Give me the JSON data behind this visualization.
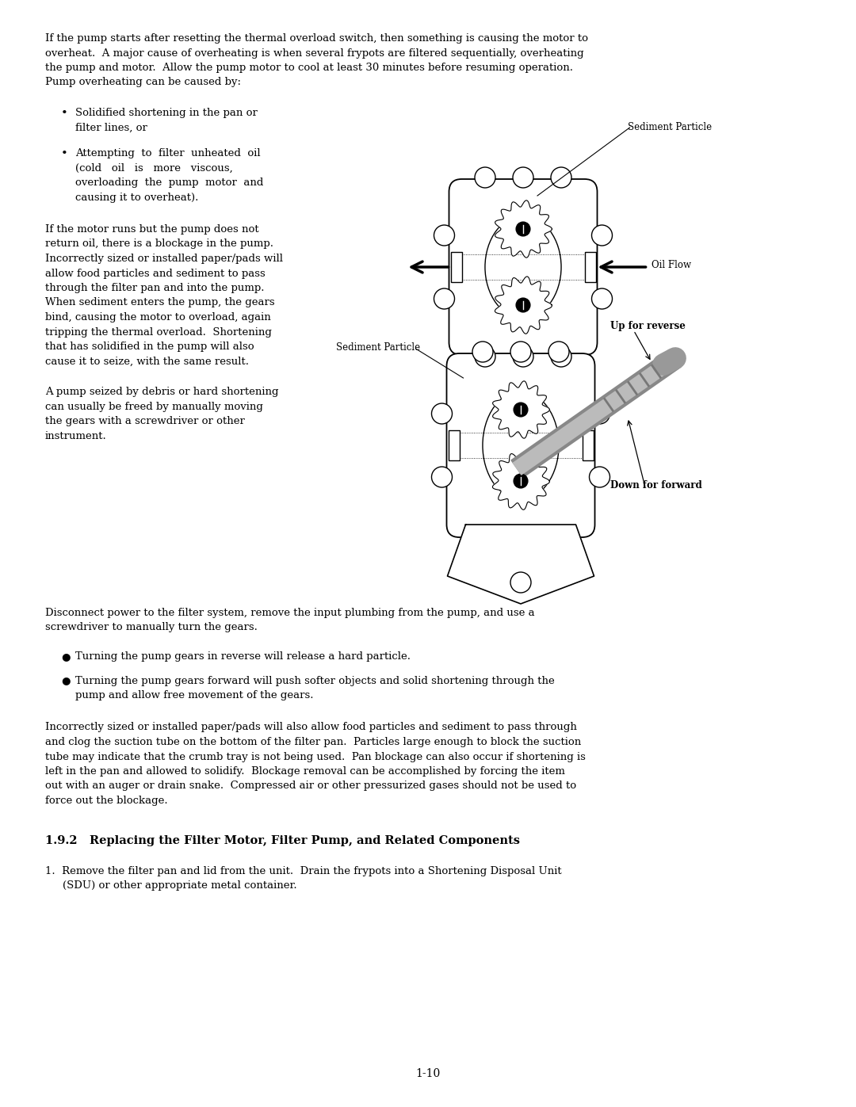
{
  "page_number": "1-10",
  "bg_color": "#ffffff",
  "text_color": "#000000",
  "body_font_size": 9.5,
  "para1_lines": [
    "If the pump starts after resetting the thermal overload switch, then something is causing the motor to",
    "overheat.  A major cause of overheating is when several frypots are filtered sequentially, overheating",
    "the pump and motor.  Allow the pump motor to cool at least 30 minutes before resuming operation.",
    "Pump overheating can be caused by:"
  ],
  "bullet1a_lines": [
    "Solidified shortening in the pan or",
    "filter lines, or"
  ],
  "bullet1b_lines": [
    "Attempting  to  filter  unheated  oil",
    "(cold   oil   is   more   viscous,",
    "overloading  the  pump  motor  and",
    "causing it to overheat)."
  ],
  "para2_lines": [
    "If the motor runs but the pump does not",
    "return oil, there is a blockage in the pump.",
    "Incorrectly sized or installed paper/pads will",
    "allow food particles and sediment to pass",
    "through the filter pan and into the pump.",
    "When sediment enters the pump, the gears",
    "bind, causing the motor to overload, again",
    "tripping the thermal overload.  Shortening",
    "that has solidified in the pump will also",
    "cause it to seize, with the same result."
  ],
  "para3_lines": [
    "A pump seized by debris or hard shortening",
    "can usually be freed by manually moving",
    "the gears with a screwdriver or other",
    "instrument."
  ],
  "para4_lines": [
    "Disconnect power to the filter system, remove the input plumbing from the pump, and use a",
    "screwdriver to manually turn the gears."
  ],
  "bullet2a": "Turning the pump gears in reverse will release a hard particle.",
  "bullet2b_lines": [
    "Turning the pump gears forward will push softer objects and solid shortening through the",
    "pump and allow free movement of the gears."
  ],
  "para5_lines": [
    "Incorrectly sized or installed paper/pads will also allow food particles and sediment to pass through",
    "and clog the suction tube on the bottom of the filter pan.  Particles large enough to block the suction",
    "tube may indicate that the crumb tray is not being used.  Pan blockage can also occur if shortening is",
    "left in the pan and allowed to solidify.  Blockage removal can be accomplished by forcing the item",
    "out with an auger or drain snake.  Compressed air or other pressurized gases should not be used to",
    "force out the blockage."
  ],
  "section_title": "1.9.2   Replacing the Filter Motor, Filter Pump, and Related Components",
  "num1_lines": [
    "1.  Remove the filter pan and lid from the unit.  Drain the frypots into a Shortening Disposal Unit",
    "    (SDU) or other appropriate metal container."
  ]
}
